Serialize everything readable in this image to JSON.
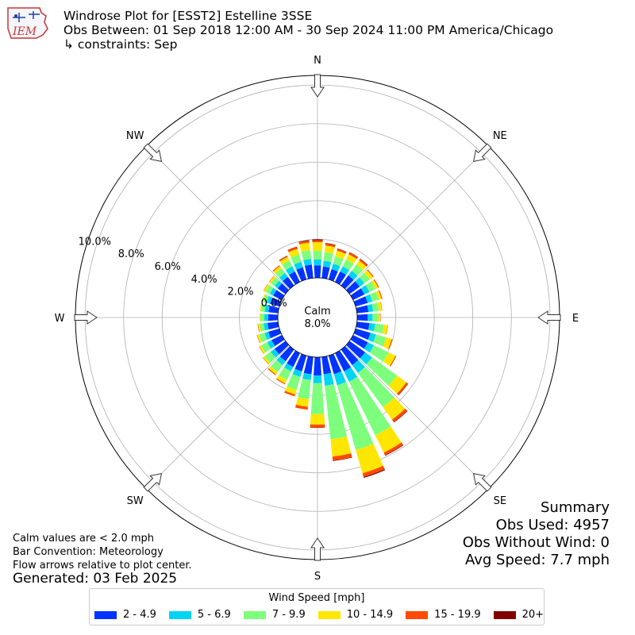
{
  "header": {
    "logo_text": "IEM",
    "title": "Windrose Plot for [ESST2] Estelline 3SSE",
    "subtitle": "Obs Between: 01 Sep 2018 12:00 AM - 30 Sep 2024 11:00 PM America/Chicago",
    "constraints": "↳ constraints: Sep"
  },
  "summary": {
    "heading": "Summary",
    "obs_used": "Obs Used: 4957",
    "obs_without_wind": "Obs Without Wind: 0",
    "avg_speed": "Avg Speed: 7.7 mph"
  },
  "notes": {
    "calm_note": "Calm values are < 2.0 mph",
    "bar_convention": "Bar Convention: Meteorology",
    "flow_arrows": "Flow arrows relative to plot center.",
    "generated": "Generated: 03 Feb 2025"
  },
  "legend": {
    "title": "Wind Speed [mph]",
    "items": [
      {
        "label": "2 - 4.9",
        "color": "#0033ff"
      },
      {
        "label": "5 - 6.9",
        "color": "#00d4f4"
      },
      {
        "label": "7 - 9.9",
        "color": "#7dff7d"
      },
      {
        "label": "10 - 14.9",
        "color": "#ffe600"
      },
      {
        "label": "15 - 19.9",
        "color": "#ff4a00"
      },
      {
        "label": "20+",
        "color": "#800000"
      }
    ]
  },
  "chart_data": {
    "type": "windrose",
    "title": "Windrose Plot for [ESST2] Estelline 3SSE",
    "calm_label": "Calm",
    "calm_value": "8.0%",
    "calm_percent": 8.0,
    "radial_ticks": [
      "0.0%",
      "2.0%",
      "4.0%",
      "6.0%",
      "8.0%",
      "10.0%"
    ],
    "radial_tick_values": [
      0,
      2,
      4,
      6,
      8,
      10
    ],
    "rmax": 10.5,
    "compass_labels": [
      "N",
      "NE",
      "E",
      "SE",
      "S",
      "SW",
      "W",
      "NW"
    ],
    "direction_step_deg": 10,
    "directions_deg": [
      0,
      10,
      20,
      30,
      40,
      50,
      60,
      70,
      80,
      90,
      100,
      110,
      120,
      130,
      140,
      150,
      160,
      170,
      180,
      190,
      200,
      210,
      220,
      230,
      240,
      250,
      260,
      270,
      280,
      290,
      300,
      310,
      320,
      330,
      340,
      350
    ],
    "series": [
      {
        "name": "2 - 4.9",
        "values": [
          0.65,
          0.6,
          0.55,
          0.6,
          0.65,
          0.65,
          0.65,
          0.65,
          0.6,
          0.55,
          0.65,
          0.8,
          0.85,
          1.0,
          1.0,
          1.05,
          1.0,
          0.9,
          0.95,
          0.9,
          0.85,
          0.8,
          0.75,
          0.7,
          0.6,
          0.6,
          0.55,
          0.5,
          0.5,
          0.5,
          0.5,
          0.5,
          0.55,
          0.6,
          0.65,
          0.7
        ]
      },
      {
        "name": "5 - 6.9",
        "values": [
          0.3,
          0.3,
          0.3,
          0.3,
          0.3,
          0.3,
          0.3,
          0.25,
          0.25,
          0.25,
          0.3,
          0.3,
          0.35,
          0.45,
          0.5,
          0.6,
          0.6,
          0.6,
          0.4,
          0.3,
          0.3,
          0.25,
          0.25,
          0.25,
          0.25,
          0.2,
          0.2,
          0.2,
          0.2,
          0.2,
          0.2,
          0.2,
          0.25,
          0.3,
          0.3,
          0.3
        ]
      },
      {
        "name": "7 - 9.9",
        "values": [
          0.45,
          0.45,
          0.4,
          0.4,
          0.4,
          0.35,
          0.35,
          0.35,
          0.3,
          0.3,
          0.45,
          0.55,
          0.85,
          1.6,
          2.2,
          3.1,
          3.5,
          2.8,
          1.6,
          1.0,
          0.7,
          0.5,
          0.45,
          0.4,
          0.35,
          0.3,
          0.2,
          0.2,
          0.2,
          0.2,
          0.25,
          0.25,
          0.3,
          0.35,
          0.4,
          0.45
        ]
      },
      {
        "name": "10 - 14.9",
        "values": [
          0.45,
          0.35,
          0.3,
          0.3,
          0.25,
          0.2,
          0.15,
          0.15,
          0.15,
          0.1,
          0.2,
          0.3,
          0.4,
          0.6,
          0.8,
          1.0,
          1.25,
          0.9,
          0.55,
          0.4,
          0.25,
          0.2,
          0.15,
          0.1,
          0.1,
          0.1,
          0.1,
          0.05,
          0.05,
          0.05,
          0.1,
          0.1,
          0.15,
          0.2,
          0.3,
          0.4
        ]
      },
      {
        "name": "15 - 19.9",
        "values": [
          0.1,
          0.1,
          0.1,
          0.1,
          0.1,
          0.05,
          0.05,
          0.05,
          0.02,
          0.02,
          0.02,
          0.05,
          0.05,
          0.1,
          0.15,
          0.15,
          0.2,
          0.2,
          0.15,
          0.15,
          0.1,
          0.05,
          0.05,
          0.02,
          0.02,
          0.02,
          0.02,
          0.0,
          0.0,
          0.0,
          0.02,
          0.02,
          0.05,
          0.05,
          0.1,
          0.1
        ]
      },
      {
        "name": "20+",
        "values": [
          0.05,
          0.03,
          0.02,
          0.02,
          0.02,
          0.0,
          0.0,
          0.0,
          0.0,
          0.0,
          0.0,
          0.0,
          0.0,
          0.02,
          0.03,
          0.03,
          0.05,
          0.03,
          0.02,
          0.0,
          0.0,
          0.0,
          0.0,
          0.0,
          0.0,
          0.0,
          0.0,
          0.0,
          0.0,
          0.0,
          0.0,
          0.0,
          0.0,
          0.02,
          0.02,
          0.03
        ]
      }
    ]
  }
}
